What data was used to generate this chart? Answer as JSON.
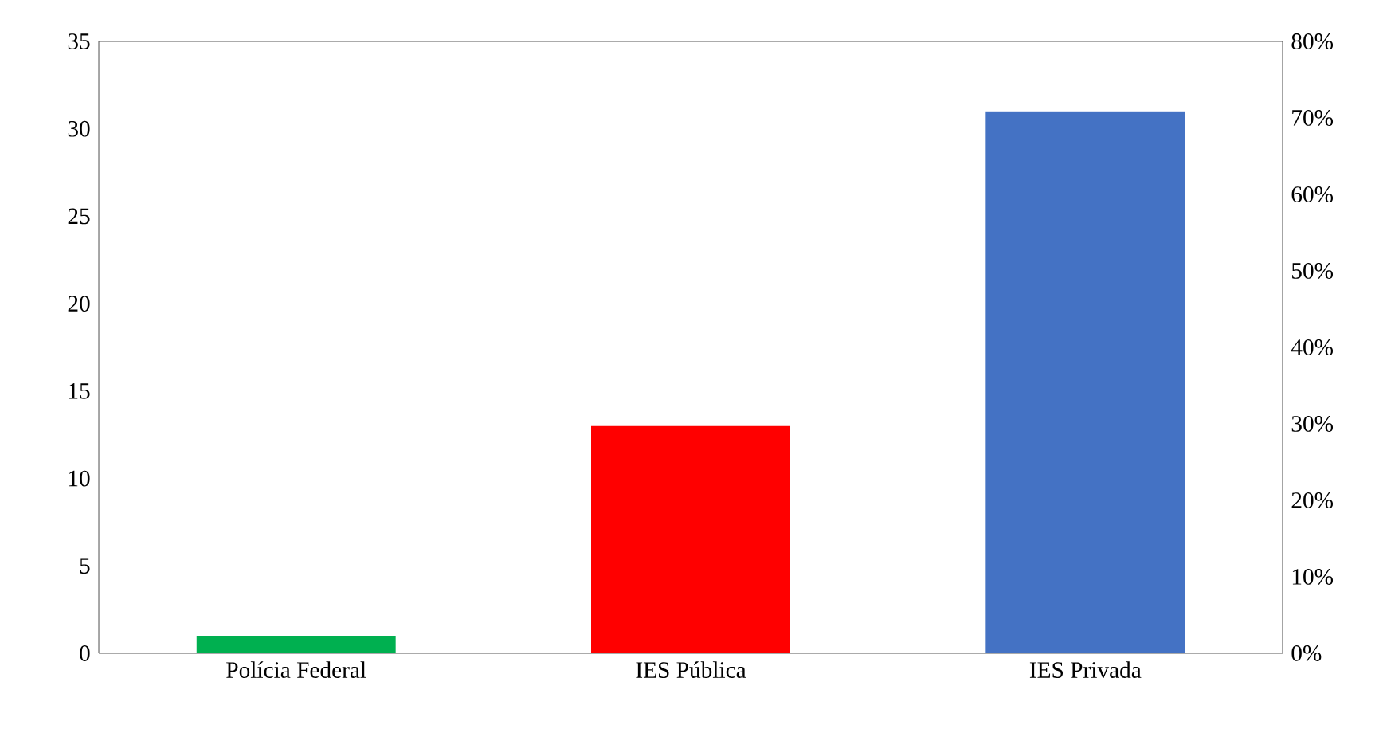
{
  "chart_data": {
    "type": "bar",
    "categories": [
      "Polícia Federal",
      "IES Pública",
      "IES Privada"
    ],
    "values": [
      1,
      13,
      31
    ],
    "colors": [
      "#00b050",
      "#ff0000",
      "#4472c4"
    ],
    "ylim": [
      0,
      35
    ],
    "yticks": [
      0,
      5,
      10,
      15,
      20,
      25,
      30,
      35
    ],
    "y2lim": [
      0,
      80
    ],
    "y2ticks": [
      {
        "value": 0,
        "label": "0%"
      },
      {
        "value": 10,
        "label": "10%"
      },
      {
        "value": 20,
        "label": "20%"
      },
      {
        "value": 30,
        "label": "30%"
      },
      {
        "value": 40,
        "label": "40%"
      },
      {
        "value": 50,
        "label": "50%"
      },
      {
        "value": 60,
        "label": "60%"
      },
      {
        "value": 70,
        "label": "70%"
      },
      {
        "value": 80,
        "label": "80%"
      }
    ],
    "grid": false
  }
}
